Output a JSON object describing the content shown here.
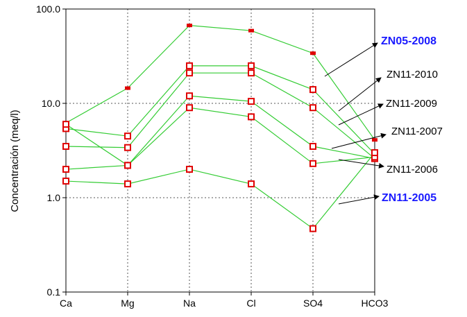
{
  "chart_data": {
    "type": "line",
    "title": "",
    "xlabel": "",
    "ylabel": "Concentración (meq/l)",
    "yscale": "log",
    "ylim": [
      0.1,
      100.0
    ],
    "yticks": [
      "0.1",
      "1.0",
      "10.0",
      "100.0"
    ],
    "categories": [
      "Ca",
      "Mg",
      "Na",
      "Cl",
      "SO4",
      "HCO3"
    ],
    "grid": true,
    "line_color": "#33cc33",
    "marker_color": "#e00000",
    "series": [
      {
        "name": "ZN05-2008",
        "label_bold": true,
        "values": [
          6.2,
          14.5,
          67.0,
          59.0,
          34.0,
          4.1
        ]
      },
      {
        "name": "ZN11-2010",
        "label_bold": false,
        "values": [
          5.4,
          4.5,
          25.0,
          25.0,
          14.0,
          2.9
        ]
      },
      {
        "name": "ZN11-2009",
        "label_bold": false,
        "values": [
          3.5,
          3.4,
          21.0,
          21.0,
          9.0,
          2.6
        ]
      },
      {
        "name": "ZN11-2007",
        "label_bold": false,
        "values": [
          6.0,
          2.2,
          12.0,
          10.5,
          3.5,
          2.6
        ]
      },
      {
        "name": "ZN11-2006",
        "label_bold": false,
        "values": [
          2.0,
          2.2,
          9.0,
          7.2,
          2.3,
          2.7
        ]
      },
      {
        "name": "ZN11-2005",
        "label_bold": true,
        "values": [
          1.5,
          1.4,
          2.0,
          1.4,
          0.47,
          3.0
        ]
      }
    ]
  }
}
